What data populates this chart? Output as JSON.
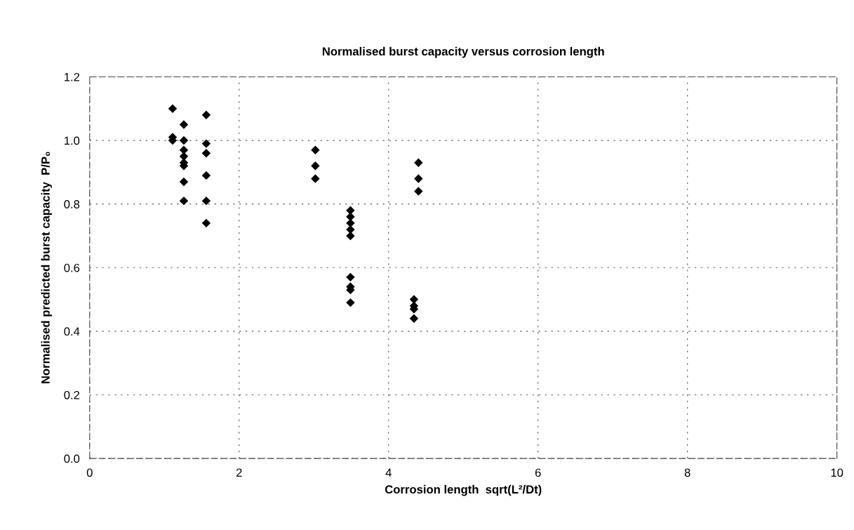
{
  "chart_data": {
    "type": "scatter",
    "title": "Normalised burst capacity versus corrosion length",
    "xlabel": "Corrosion length  sqrt(L²/Dt)",
    "ylabel": "Normalised predicted burst capacity  P/P₀",
    "x": [
      1.11,
      1.11,
      1.11,
      1.26,
      1.26,
      1.26,
      1.26,
      1.26,
      1.26,
      1.26,
      1.26,
      1.56,
      1.56,
      1.56,
      1.56,
      1.56,
      1.56,
      3.02,
      3.02,
      3.02,
      3.49,
      3.49,
      3.49,
      3.49,
      3.49,
      3.49,
      3.49,
      3.49,
      3.49,
      4.4,
      4.4,
      4.4,
      4.34,
      4.34,
      4.34,
      4.34
    ],
    "series": [
      {
        "color": "#000000",
        "values": [
          1.1,
          1.01,
          1.0,
          1.05,
          1.0,
          0.97,
          0.95,
          0.93,
          0.92,
          0.87,
          0.81,
          1.08,
          0.99,
          0.96,
          0.89,
          0.81,
          0.74,
          0.97,
          0.92,
          0.88,
          0.78,
          0.76,
          0.74,
          0.72,
          0.7,
          0.57,
          0.54,
          0.53,
          0.49,
          0.93,
          0.88,
          0.84,
          0.5,
          0.48,
          0.47,
          0.44
        ]
      }
    ],
    "xlim": [
      0,
      10
    ],
    "xticks": [
      0,
      2,
      4,
      6,
      8,
      10
    ],
    "ylim": [
      0,
      1.2
    ],
    "yticks": [
      {
        "value": 0,
        "label": "0.0"
      },
      {
        "value": 0.2,
        "label": "0.2"
      },
      {
        "value": 0.4,
        "label": "0.4"
      },
      {
        "value": 0.6,
        "label": "0.6"
      },
      {
        "value": 0.8,
        "label": "0.8"
      },
      {
        "value": 1.0,
        "label": "1.0"
      },
      {
        "value": 1.2,
        "label": "1.2"
      }
    ],
    "grid": true,
    "marker": "diamond",
    "legend": false
  }
}
